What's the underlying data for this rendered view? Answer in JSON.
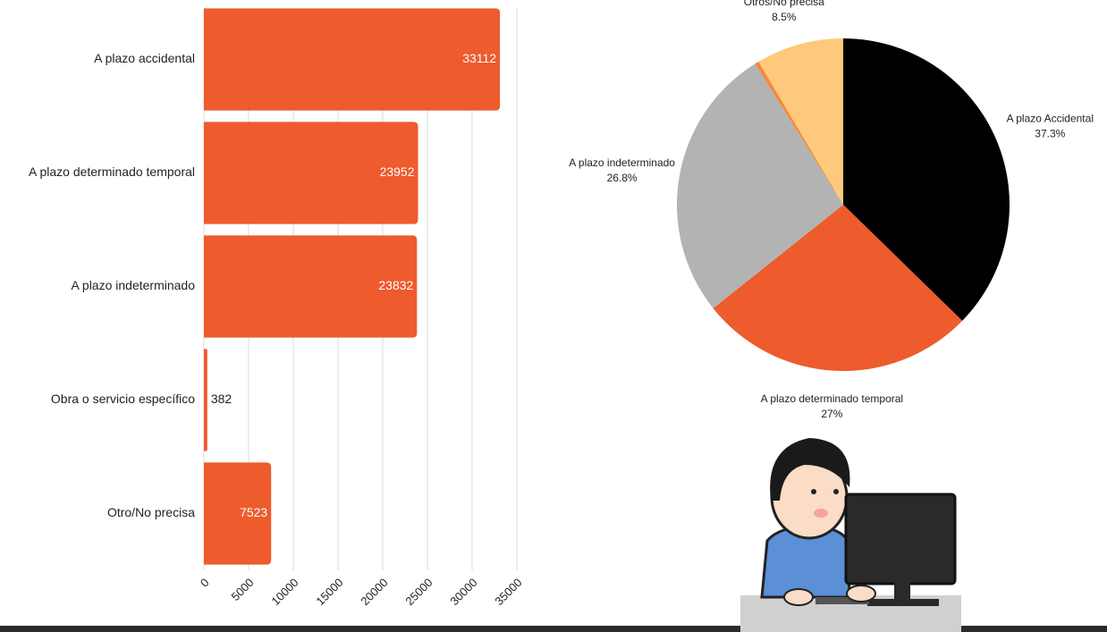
{
  "chart_data": [
    {
      "type": "hbar",
      "categories": [
        "A plazo accidental",
        "A plazo determinado temporal",
        "A plazo indeterminado",
        "Obra o servicio específico",
        "Otro/No precisa"
      ],
      "values": [
        33112,
        23952,
        23832,
        382,
        7523
      ],
      "color": "#ee5b2d",
      "xlim": [
        0,
        35000
      ],
      "xticks": [
        0,
        5000,
        10000,
        15000,
        20000,
        25000,
        30000,
        35000
      ],
      "grid": true
    },
    {
      "type": "pie",
      "categories": [
        "A plazo Accidental",
        "A plazo determinado temporal",
        "A plazo indeterminado",
        null,
        "Otros/No precisa"
      ],
      "values": [
        37.3,
        27,
        26.8,
        0.4,
        8.5
      ],
      "value_labels": [
        "37.3%",
        "27%",
        "26.8%",
        null,
        "8.5%"
      ],
      "colors": [
        "#000000",
        "#ee5b2d",
        "#b3b3b3",
        "#f28a3c",
        "#fec97c"
      ]
    }
  ]
}
